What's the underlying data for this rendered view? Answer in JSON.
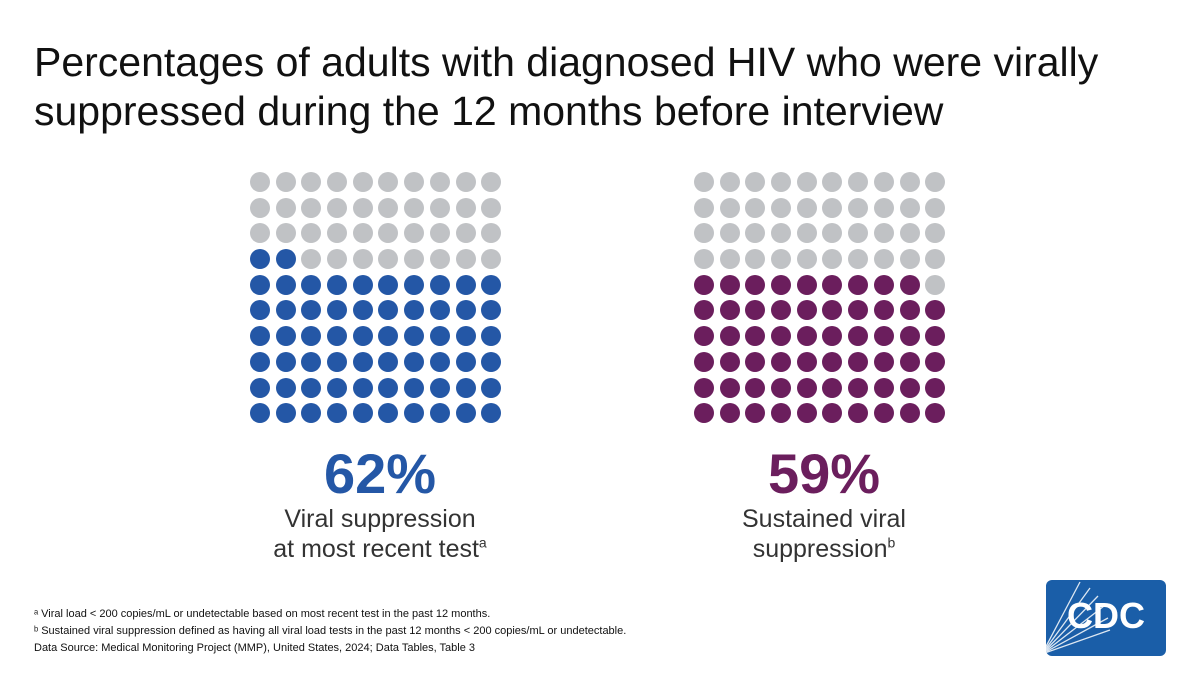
{
  "title": "Percentages of adults with diagnosed HIV who were virally suppressed during the 12 months before interview",
  "colors": {
    "blue": "#2457a6",
    "purple": "#6b1e5d",
    "gray": "#c0c2c5",
    "cdc_blue": "#1a5ea8"
  },
  "chart_data": [
    {
      "type": "waffle",
      "value": 62,
      "unit": "%",
      "total_dots": 100,
      "color": "#2457a6",
      "value_label": "62%",
      "label_line1": "Viral suppression",
      "label_line2": "at most recent test",
      "label_sup": "a"
    },
    {
      "type": "waffle",
      "value": 59,
      "unit": "%",
      "total_dots": 100,
      "color": "#6b1e5d",
      "value_label": "59%",
      "label_line1": "Sustained viral",
      "label_line2": "suppression",
      "label_sup": "b"
    }
  ],
  "footnotes": {
    "a": "ᵃ Viral load < 200 copies/mL or undetectable based on most recent test in the past 12 months.",
    "b": "ᵇ Sustained viral suppression defined as having all viral load tests in the past 12 months < 200 copies/mL or undetectable.",
    "source": "Data Source: Medical Monitoring Project (MMP), United States, 2024; Data Tables, Table 3"
  },
  "logo": {
    "text": "CDC",
    "icon": "cdc-logo-icon"
  }
}
